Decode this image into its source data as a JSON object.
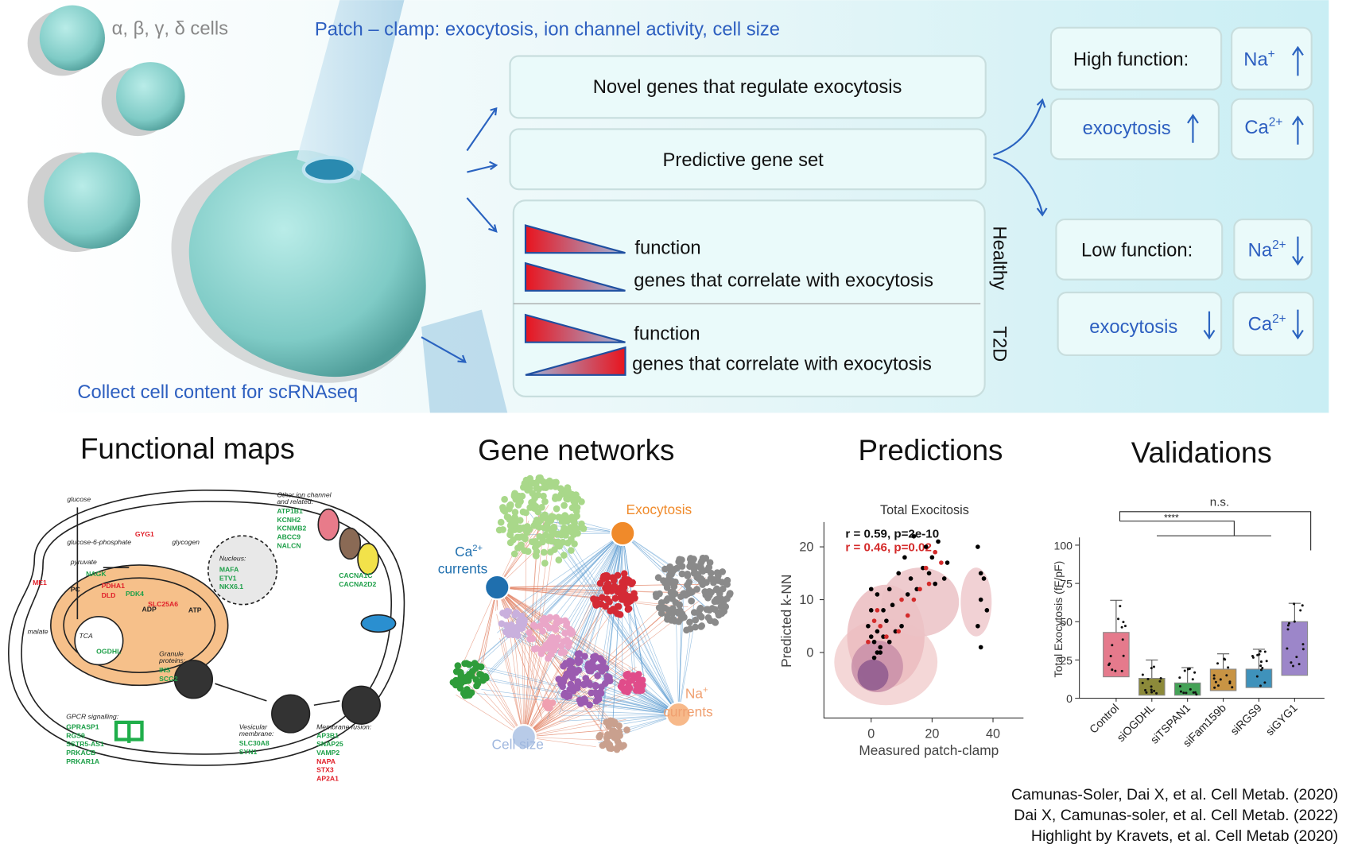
{
  "overview": {
    "cell_types": "α, β, γ, δ cells",
    "patch_clamp": "Patch – clamp: exocytosis, ion channel activity, cell size",
    "collect": "Collect cell content for scRNAseq",
    "outcomes": [
      "Novel genes that regulate exocytosis",
      "Predictive gene set"
    ],
    "healthy": {
      "label": "Healthy",
      "rows": [
        "function",
        "genes that correlate with exocytosis"
      ]
    },
    "t2d": {
      "label": "T2D",
      "rows": [
        "function",
        "genes that correlate with exocytosis"
      ]
    },
    "high": {
      "label": "High function:",
      "items": [
        {
          "text": "Na",
          "sup": "+"
        },
        {
          "text": "exocytosis"
        },
        {
          "text": "Ca",
          "sup": "2+"
        }
      ]
    },
    "low": {
      "label": "Low function:",
      "items": [
        {
          "text": "Na",
          "sup": "2+"
        },
        {
          "text": "exocytosis"
        },
        {
          "text": "Ca",
          "sup": "2+"
        }
      ]
    }
  },
  "functional_map": {
    "title": "Functional maps",
    "labels": [
      "glucose",
      "glucose-6-phosphate",
      "glycogen",
      "GYG1",
      "pyruvate",
      "NAGK",
      "PC",
      "PDHA1",
      "DLD",
      "PDK4",
      "ME1",
      "malate",
      "TCA",
      "OGDHL",
      "ADP",
      "SLC25A6",
      "ATP",
      "Nucleus:",
      "MAFA",
      "ETV1",
      "NKX6.1",
      "Other ion channel",
      "and related:",
      "ATP1B1",
      "KCNH2",
      "KCNMB2",
      "ABCC9",
      "NALCN",
      "CACNA1C",
      "CACNA2D2",
      "Granule",
      "proteins:",
      "INS",
      "SCG2",
      "Vesicular",
      "membrane:",
      "SLC30A8",
      "SYN1",
      "Membrane fusion:",
      "AP3B1",
      "SNAP25",
      "VAMP2",
      "NAPA",
      "STX3",
      "AP2A1",
      "GPCR signalling:",
      "GPRASP1",
      "RGS9",
      "SSTR5-AS1",
      "PRKACB",
      "PRKAR1A"
    ]
  },
  "gene_networks": {
    "title": "Gene networks",
    "exocytosis": "Exocytosis",
    "ca": {
      "text": "Ca",
      "sup": "2+",
      "rest": "currents"
    },
    "na": {
      "text": "Na",
      "sup": "+",
      "rest": "currents"
    },
    "cell_size": "Cell size"
  },
  "predictions": {
    "title": "Predictions",
    "chart_data": {
      "type": "scatter",
      "title": "Total Exocitosis",
      "x_label": "Measured patch-clamp",
      "y_label": "Predicted k-NN",
      "annotations": [
        "r = 0.59, p=2e-10",
        "r = 0.46, p=0.02"
      ],
      "xlim": [
        -15.5,
        50
      ],
      "ylim": [
        -12.4,
        24.7
      ],
      "xticks": [
        0,
        20,
        40
      ],
      "yticks": [
        0,
        10,
        20
      ],
      "series": [
        {
          "color": "#000000",
          "x": [
            0,
            1,
            2,
            3,
            -1,
            0,
            2,
            5,
            4,
            3,
            6,
            1,
            8,
            10,
            7,
            12,
            13,
            15,
            17,
            18,
            20,
            22,
            19,
            24,
            21,
            25,
            11,
            9,
            14,
            35,
            37,
            36,
            38,
            35,
            36,
            36,
            0,
            2,
            4,
            6
          ],
          "values": [
            3,
            2,
            4,
            1,
            5,
            8,
            11,
            6,
            3,
            0,
            2,
            -1,
            4,
            5,
            9,
            11,
            14,
            12,
            16,
            20,
            18,
            21,
            15,
            14,
            13,
            17,
            18,
            15,
            22,
            20,
            14,
            10,
            8,
            5,
            1,
            15,
            12,
            0,
            8,
            12
          ]
        },
        {
          "color": "#d42a2a",
          "x": [
            1,
            3,
            2,
            5,
            9,
            12,
            16,
            18,
            21,
            23,
            19,
            10,
            14,
            -1
          ],
          "values": [
            6,
            5,
            8,
            3,
            4,
            7,
            12,
            16,
            19,
            17,
            13,
            10,
            10,
            2
          ]
        }
      ]
    }
  },
  "validations": {
    "title": "Validations",
    "chart_data": {
      "type": "box",
      "y_label": "Total Exocytosis (fF/pF)",
      "categories": [
        "Control",
        "siOGDHL",
        "siTSPAN1",
        "siFam159b",
        "siRGS9",
        "siGYG1"
      ],
      "colors": [
        "#e57a8c",
        "#8c8a3a",
        "#45a257",
        "#c89444",
        "#3f92bb",
        "#9c86c9"
      ],
      "q1": [
        14,
        2,
        2,
        5,
        7,
        15
      ],
      "q3": [
        43,
        13,
        10,
        19,
        19,
        50
      ],
      "whisker_high": [
        64,
        25,
        20,
        29,
        32,
        62
      ],
      "ylim": [
        0,
        105
      ],
      "yticks": [
        0,
        25,
        50,
        75,
        100
      ],
      "annotations": [
        "n.s.",
        "****"
      ]
    }
  },
  "citations": [
    "Camunas-Soler, Dai X, et al. Cell Metab. (2020)",
    "Dai X, Camunas-soler, et al. Cell Metab. (2022)",
    "Highlight by Kravets, et al. Cell Metab (2020)"
  ]
}
